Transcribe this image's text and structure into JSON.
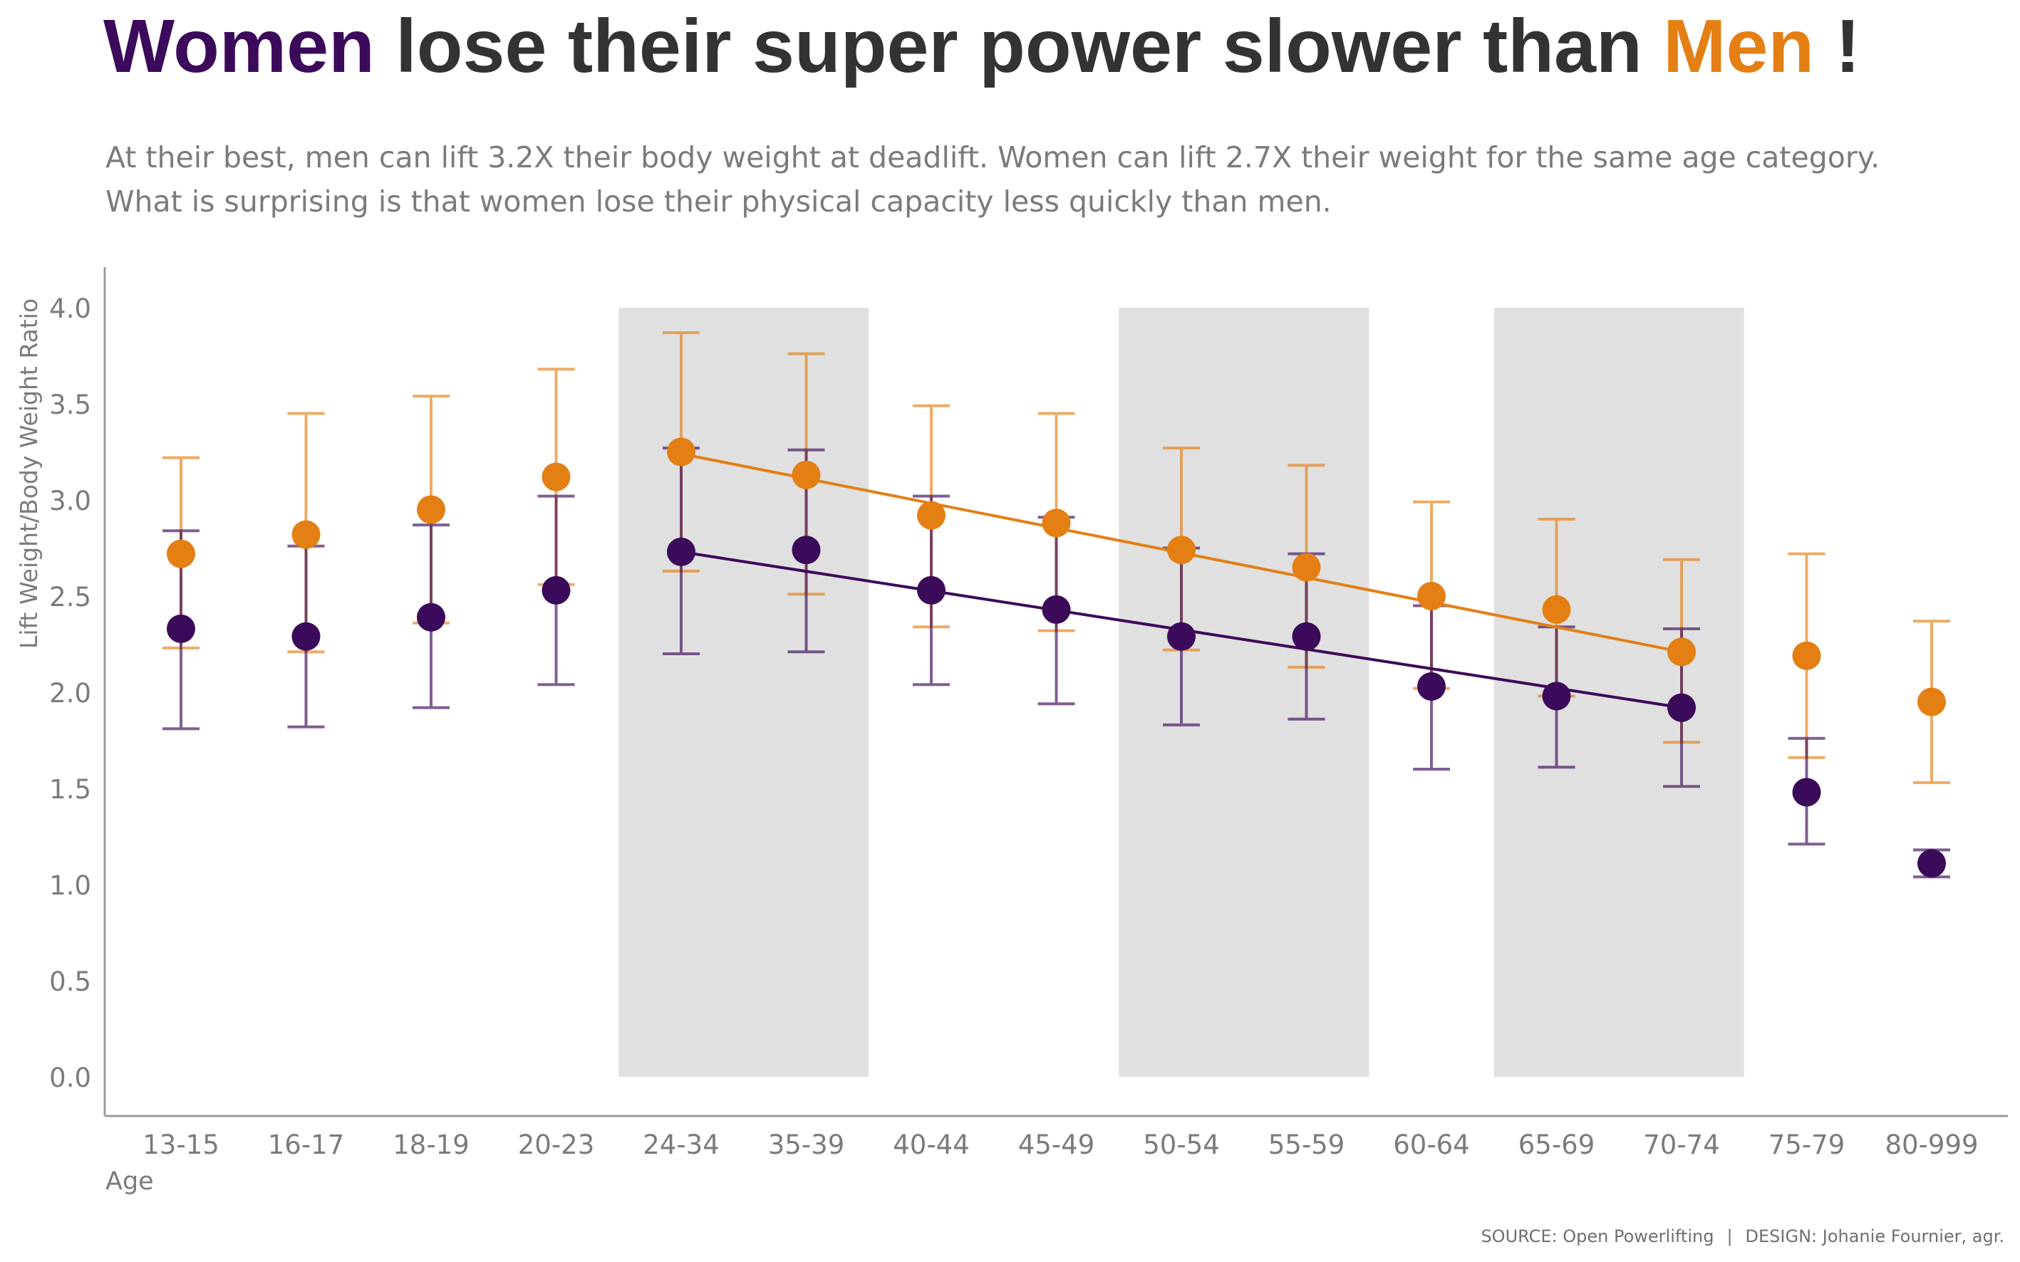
{
  "title": {
    "women": "Women",
    "middle": "lose their super power slower than",
    "men": "Men",
    "end": "!"
  },
  "subtitle": {
    "line1": "At their best, men can lift 3.2X their body weight at deadlift. Women can lift 2.7X their weight for the same age category.",
    "line2": "What is surprising is that women lose their physical capacity less quickly than men."
  },
  "footer": {
    "source": "SOURCE: Open Powerlifting",
    "separator": "|",
    "design": "DESIGN: Johanie Fournier, agr."
  },
  "colors": {
    "women": "#3c0a5a",
    "men": "#e47f14",
    "band": "#e0e0e0",
    "axis": "#999999",
    "text": "#7b7b7b"
  },
  "chart_data": {
    "type": "scatter",
    "xlabel": "Age",
    "ylabel": "Lift Weight/Body Weight Ratio",
    "ylim": [
      0,
      4.0
    ],
    "yticks": [
      "0.0",
      "0.5",
      "1.0",
      "1.5",
      "2.0",
      "2.5",
      "3.0",
      "3.5",
      "4.0"
    ],
    "categories": [
      "13-15",
      "16-17",
      "18-19",
      "20-23",
      "24-34",
      "35-39",
      "40-44",
      "45-49",
      "50-54",
      "55-59",
      "60-64",
      "65-69",
      "70-74",
      "75-79",
      "80-999"
    ],
    "shaded_bands": [
      [
        "24-34",
        "35-39"
      ],
      [
        "50-54",
        "55-59"
      ],
      [
        "65-69",
        "70-74"
      ]
    ],
    "series": [
      {
        "name": "Men",
        "color": "#e47f14",
        "values": [
          2.72,
          2.82,
          2.95,
          3.12,
          3.25,
          3.13,
          2.92,
          2.88,
          2.74,
          2.65,
          2.5,
          2.43,
          2.21,
          2.19,
          1.95
        ],
        "upper": [
          3.22,
          3.45,
          3.54,
          3.68,
          3.87,
          3.76,
          3.49,
          3.45,
          3.27,
          3.18,
          2.99,
          2.9,
          2.69,
          2.72,
          2.37
        ],
        "lower": [
          2.23,
          2.21,
          2.36,
          2.56,
          2.63,
          2.51,
          2.34,
          2.32,
          2.22,
          2.13,
          2.02,
          1.98,
          1.74,
          1.66,
          1.53
        ],
        "trend": {
          "from": "24-34",
          "to": "70-74",
          "start": 3.24,
          "end": 2.21
        }
      },
      {
        "name": "Women",
        "color": "#3c0a5a",
        "values": [
          2.33,
          2.29,
          2.39,
          2.53,
          2.73,
          2.74,
          2.53,
          2.43,
          2.29,
          2.29,
          2.03,
          1.98,
          1.92,
          1.48,
          1.11
        ],
        "upper": [
          2.84,
          2.76,
          2.87,
          3.02,
          3.27,
          3.26,
          3.02,
          2.91,
          2.75,
          2.72,
          2.45,
          2.34,
          2.33,
          1.76,
          1.18
        ],
        "lower": [
          1.81,
          1.82,
          1.92,
          2.04,
          2.2,
          2.21,
          2.04,
          1.94,
          1.83,
          1.86,
          1.6,
          1.61,
          1.51,
          1.21,
          1.04
        ],
        "trend": {
          "from": "24-34",
          "to": "70-74",
          "start": 2.73,
          "end": 1.92
        }
      }
    ]
  }
}
